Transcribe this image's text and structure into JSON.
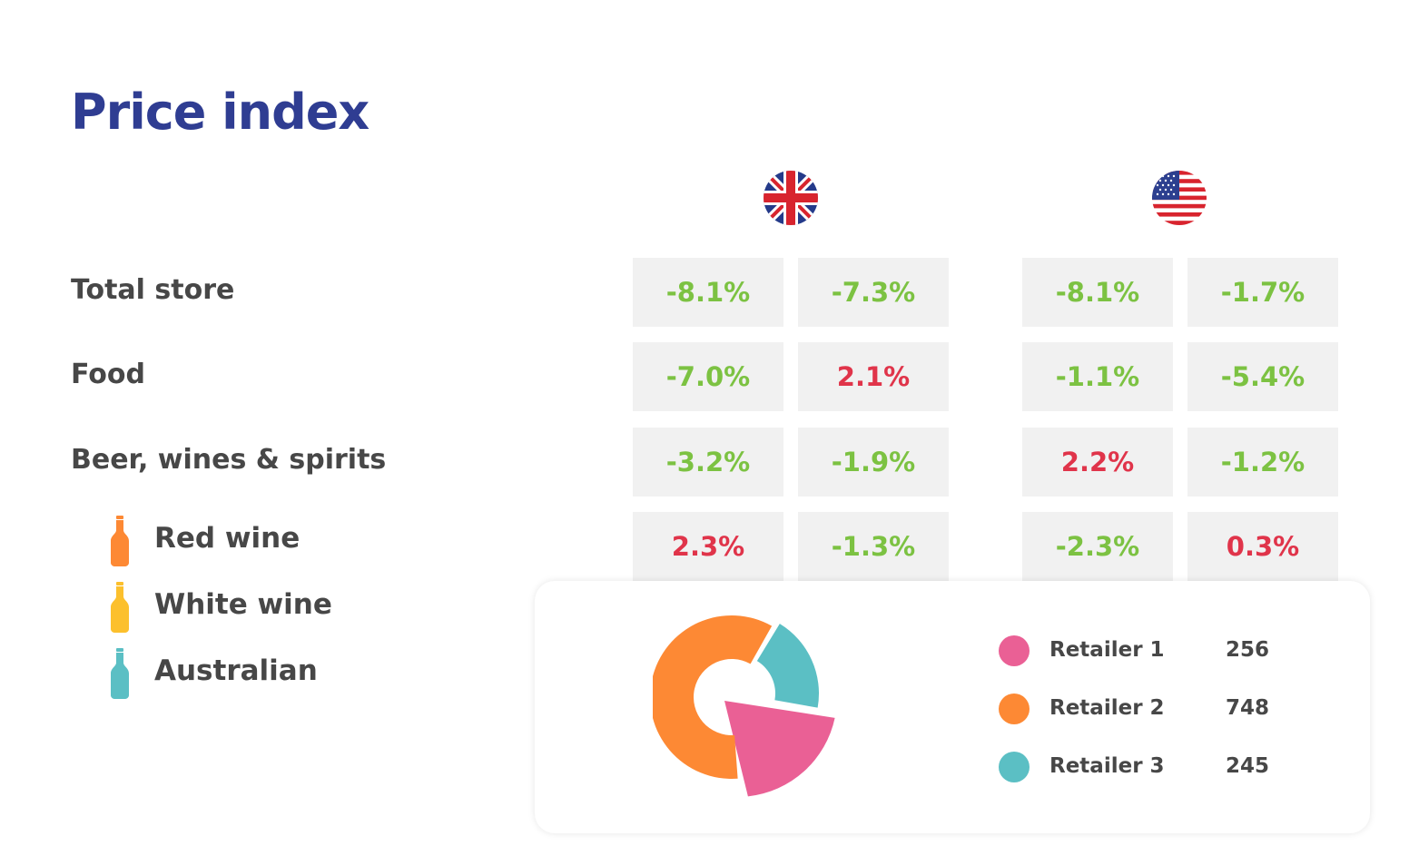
{
  "title": "Price index",
  "colors": {
    "title": "#2f3d92",
    "positive": "#e0344a",
    "negative": "#7cc242",
    "retailer1": "#ea6095",
    "retailer2": "#fd8934",
    "retailer3": "#5bbfc4",
    "red_wine_bottle": "#fd8934",
    "white_wine_bottle": "#fcc02d",
    "australian_bottle": "#5bbfc4"
  },
  "flags": [
    {
      "name": "uk-flag-icon",
      "country": "UK"
    },
    {
      "name": "us-flag-icon",
      "country": "US"
    }
  ],
  "rows": [
    {
      "label": "Total store",
      "values": [
        "-8.1%",
        "-7.3%",
        "-8.1%",
        "-1.7%"
      ]
    },
    {
      "label": "Food",
      "values": [
        "-7.0%",
        "2.1%",
        "-1.1%",
        "-5.4%"
      ]
    },
    {
      "label": "Beer, wines & spirits",
      "values": [
        "-3.2%",
        "-1.9%",
        "2.2%",
        "-1.2%"
      ]
    },
    {
      "label": "Red wine",
      "values": [
        "2.3%",
        "-1.3%",
        "-2.3%",
        "0.3%"
      ]
    }
  ],
  "sub_items": [
    {
      "label": "Red wine",
      "icon": "bottle-icon"
    },
    {
      "label": "White wine",
      "icon": "bottle-icon"
    },
    {
      "label": "Australian",
      "icon": "bottle-icon"
    }
  ],
  "legend": [
    {
      "name": "Retailer 1",
      "value": "256"
    },
    {
      "name": "Retailer 2",
      "value": "748"
    },
    {
      "name": "Retailer 3",
      "value": "245"
    }
  ],
  "chart_data": {
    "type": "pie",
    "categories": [
      "Retailer 1",
      "Retailer 2",
      "Retailer 3"
    ],
    "values": [
      256,
      748,
      245
    ]
  }
}
